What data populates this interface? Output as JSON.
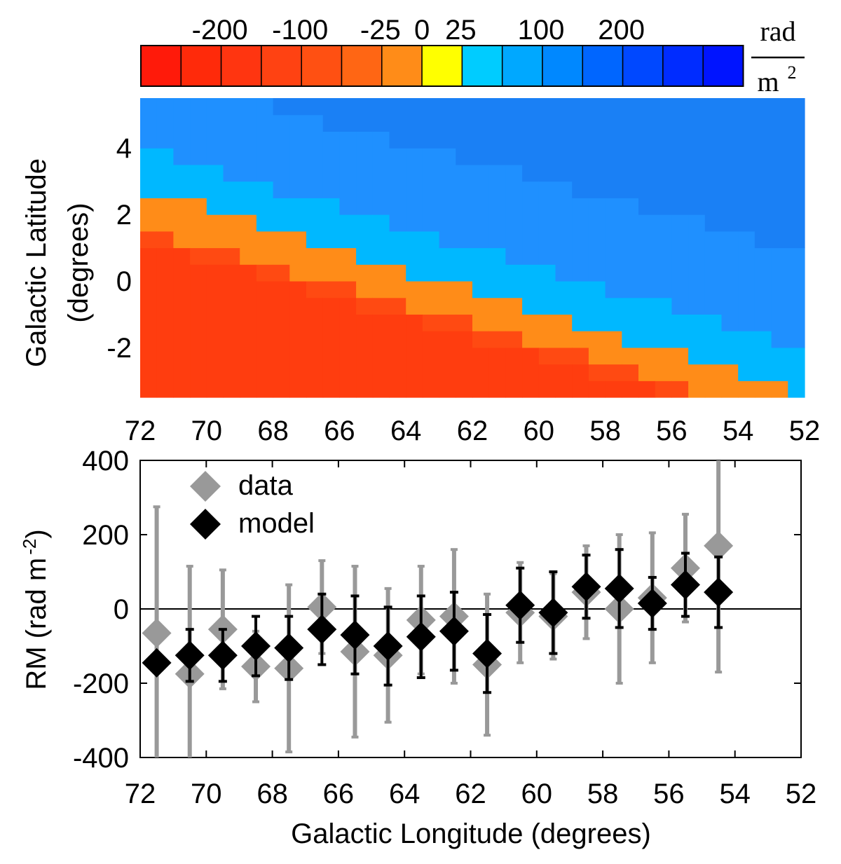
{
  "colorbar": {
    "tick_labels": [
      "-200",
      "-100",
      "-25",
      "0",
      "25",
      "100",
      "200"
    ],
    "tick_cells": [
      2,
      4,
      6,
      7,
      8,
      10,
      12
    ],
    "colors": [
      "#ff1a0a",
      "#ff2a0a",
      "#ff3510",
      "#ff4212",
      "#ff5012",
      "#ff6614",
      "#ff8c18",
      "#ffff00",
      "#00ccff",
      "#00a8ff",
      "#0088ff",
      "#0066ff",
      "#0048ff",
      "#002cff",
      "#0014ff"
    ],
    "unit_numerator": "rad",
    "unit_denominator": "m",
    "unit_exponent": "2"
  },
  "colors": {
    "red": "#ff4a12",
    "red_dark": "#ff3d0f",
    "orange": "#ff8c18",
    "cyan": "#00b8ff",
    "blue": "#1f90ff",
    "blue_dark": "#1a80f5",
    "data": "#999999",
    "model": "#000000"
  },
  "chart_data": [
    {
      "type": "heatmap",
      "title": "",
      "xlabel": "",
      "ylabel_line1": "Galactic Latitude",
      "ylabel_line2": "(degrees)",
      "xlim": [
        72,
        52
      ],
      "ylim": [
        -3.5,
        5.5
      ],
      "xticks": [
        72,
        70,
        68,
        66,
        64,
        62,
        60,
        58,
        56,
        54,
        52
      ],
      "yticks": [
        4,
        2,
        0,
        -2
      ],
      "bands_note": "RM bands separated by boundary lines b = a + s*(l - 72)",
      "boundaries": {
        "red_dark_to_red": {
          "a": 1.2,
          "s": 0.29
        },
        "red_to_orange": {
          "a": 1.6,
          "s": 0.29
        },
        "orange_to_cyan": {
          "a": 2.8,
          "s": 0.31
        },
        "cyan_to_blue": {
          "a": 4.0,
          "s": 0.3
        },
        "blue_to_blue_dark": {
          "a": 6.3,
          "s": 0.27
        }
      }
    },
    {
      "type": "scatter",
      "title": "",
      "xlabel": "Galactic Longitude (degrees)",
      "ylabel": "RM (rad m",
      "ylabel_exponent": "-2",
      "ylabel_close": ")",
      "xlim": [
        72,
        52
      ],
      "ylim": [
        -400,
        400
      ],
      "xticks": [
        72,
        70,
        68,
        66,
        64,
        62,
        60,
        58,
        56,
        54,
        52
      ],
      "yticks": [
        400,
        200,
        0,
        -200,
        -400
      ],
      "legend": {
        "position": "top-left",
        "entries": [
          "data",
          "model"
        ]
      },
      "series": [
        {
          "name": "data",
          "x": [
            71.5,
            70.5,
            69.5,
            68.5,
            67.5,
            66.5,
            65.5,
            64.5,
            63.5,
            62.5,
            61.5,
            60.5,
            59.5,
            58.5,
            57.5,
            56.5,
            55.5,
            54.5
          ],
          "y": [
            -65,
            -175,
            -55,
            -155,
            -160,
            5,
            -115,
            -125,
            -30,
            -20,
            -150,
            -10,
            -20,
            45,
            0,
            30,
            110,
            170
          ],
          "err": [
            340,
            290,
            160,
            95,
            225,
            125,
            230,
            180,
            145,
            180,
            190,
            135,
            115,
            125,
            200,
            175,
            145,
            340
          ]
        },
        {
          "name": "model",
          "x": [
            71.5,
            70.5,
            69.5,
            68.5,
            67.5,
            66.5,
            65.5,
            64.5,
            63.5,
            62.5,
            61.5,
            60.5,
            59.5,
            58.5,
            57.5,
            56.5,
            55.5,
            54.5
          ],
          "y": [
            -145,
            -125,
            -125,
            -100,
            -105,
            -55,
            -70,
            -100,
            -75,
            -60,
            -120,
            10,
            -10,
            60,
            55,
            15,
            65,
            45
          ],
          "err": [
            0,
            70,
            70,
            80,
            85,
            95,
            105,
            105,
            110,
            105,
            105,
            100,
            110,
            85,
            105,
            70,
            85,
            95
          ]
        }
      ]
    }
  ]
}
